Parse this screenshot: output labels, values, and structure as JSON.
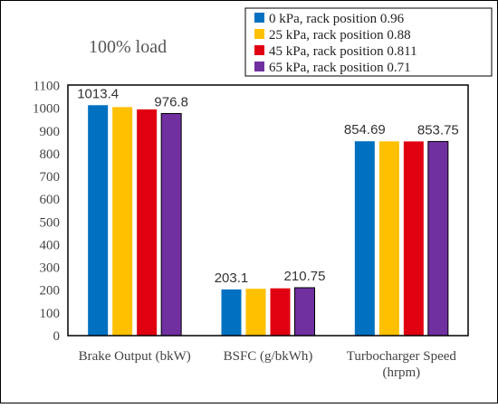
{
  "chart_data": {
    "type": "bar",
    "title": "100% load",
    "categories": [
      [
        "Brake Output (bkW)"
      ],
      [
        "BSFC (g/bkWh)"
      ],
      [
        "Turbocharger Speed",
        "(hrpm)"
      ]
    ],
    "series": [
      {
        "name": "0 kPa, rack position 0.96",
        "color": "#0070C0",
        "values": [
          1013.4,
          203.1,
          854.69
        ]
      },
      {
        "name": "25 kPa, rack position 0.88",
        "color": "#FFC000",
        "values": [
          1005,
          206,
          854.3
        ]
      },
      {
        "name": "45 kPa, rack position 0.811",
        "color": "#E00010",
        "values": [
          995,
          208,
          854.0
        ]
      },
      {
        "name": "65 kPa, rack position 0.71",
        "color": "#7030A0",
        "values": [
          976.8,
          210.75,
          853.75
        ]
      }
    ],
    "data_labels": [
      {
        "category": 0,
        "series": 0,
        "text": "1013.4"
      },
      {
        "category": 0,
        "series": 3,
        "text": "976.8"
      },
      {
        "category": 1,
        "series": 0,
        "text": "203.1"
      },
      {
        "category": 1,
        "series": 3,
        "text": "210.75"
      },
      {
        "category": 2,
        "series": 0,
        "text": "854.69"
      },
      {
        "category": 2,
        "series": 3,
        "text": "853.75"
      }
    ],
    "ylim": [
      0,
      1100
    ],
    "ytick_step": 100,
    "xlabel": "",
    "ylabel": "",
    "grid": false,
    "legend_position": "top-right"
  }
}
